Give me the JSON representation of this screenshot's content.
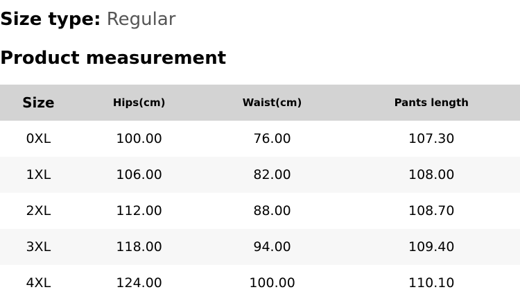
{
  "size_type": {
    "label": "Size type:",
    "value": "Regular"
  },
  "title": "Product measurement",
  "table": {
    "headers": [
      "Size",
      "Hips(cm)",
      "Waist(cm)",
      "Pants length"
    ],
    "rows": [
      [
        "0XL",
        "100.00",
        "76.00",
        "107.30"
      ],
      [
        "1XL",
        "106.00",
        "82.00",
        "108.00"
      ],
      [
        "2XL",
        "112.00",
        "88.00",
        "108.70"
      ],
      [
        "3XL",
        "118.00",
        "94.00",
        "109.40"
      ],
      [
        "4XL",
        "124.00",
        "100.00",
        "110.10"
      ]
    ]
  }
}
